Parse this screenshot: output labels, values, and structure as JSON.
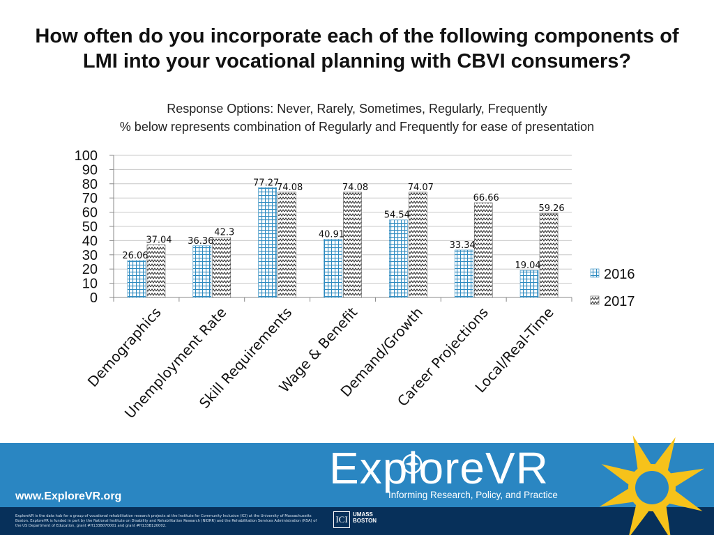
{
  "slide": {
    "title": "How often do you incorporate each of the following components of LMI into your vocational planning with CBVI consumers?",
    "subtitle_1": "Response Options: Never, Rarely, Sometimes, Regularly, Frequently",
    "subtitle_2": "% below represents combination of Regularly and Frequently for ease of presentation"
  },
  "chart_data": {
    "type": "bar",
    "title": "",
    "xlabel": "",
    "ylabel": "",
    "ylim": [
      0,
      100
    ],
    "yticks": [
      0,
      10,
      20,
      30,
      40,
      50,
      60,
      70,
      80,
      90,
      100
    ],
    "grid": true,
    "legend_position": "right",
    "categories": [
      "Demographics",
      "Unemployment Rate",
      "Skill Requirements",
      "Wage & Benefit",
      "Demand/Growth",
      "Career Projections",
      "Local/Real-Time"
    ],
    "series": [
      {
        "name": "2016",
        "values": [
          26.06,
          36.36,
          77.27,
          40.91,
          54.54,
          33.34,
          19.04
        ],
        "color": "#2e8bc0",
        "pattern": "grid"
      },
      {
        "name": "2017",
        "values": [
          37.04,
          42.3,
          74.08,
          74.08,
          74.07,
          66.66,
          59.26
        ],
        "color": "#333333",
        "pattern": "zigzag"
      }
    ]
  },
  "footer": {
    "url": "www.ExploreVR.org",
    "logo": "ExploreVR",
    "tagline": "Informing Research, Policy, and Practice",
    "fine_print": "ExploreVR is the data hub for a group of vocational rehabilitation research projects at the Institute for Community Inclusion (ICI) at the University of Massachusetts Boston. ExploreVR is funded in part by the National Institute on Disability and Rehabilitation Research (NIDRR) and the Rehabilitation Services Administration (RSA) of the US Department of Education, grant #H133B070001 and grant #H133B120002.",
    "ici_logo": "ICI",
    "umass_logo": "UMASS BOSTON"
  },
  "colors": {
    "footer_blue": "#2a86c2",
    "footer_navy": "#07305a",
    "sun_yellow": "#f6c21a"
  }
}
